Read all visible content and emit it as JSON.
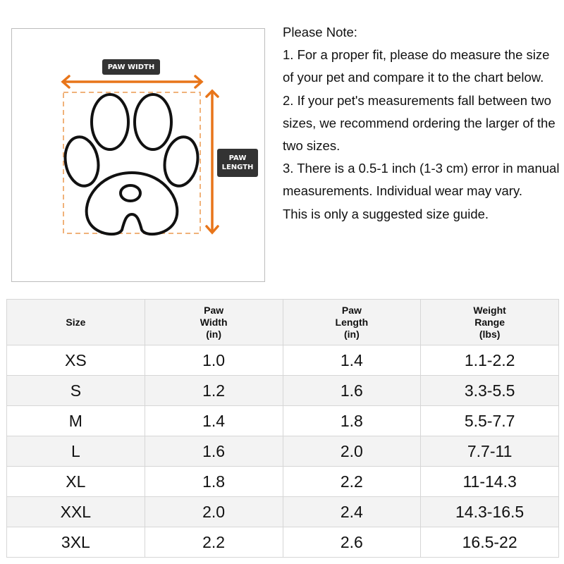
{
  "diagram": {
    "width_label": "PAW WIDTH",
    "length_label_line1": "PAW",
    "length_label_line2": "LENGTH",
    "accent_color": "#e8751a"
  },
  "note": {
    "lines": [
      "Please Note:",
      "1. For a proper fit, please do measure the size of your pet and compare it to the chart below.",
      "2. If your pet's measurements fall between two sizes, we recommend ordering the larger of the two sizes.",
      "3. There is a 0.5-1 inch (1-3 cm) error in manual measurements. Individual wear may vary.",
      "This is only a suggested size guide."
    ]
  },
  "table": {
    "headers": [
      [
        "Size"
      ],
      [
        "Paw",
        "Width",
        "(in)"
      ],
      [
        "Paw",
        "Length",
        "(in)"
      ],
      [
        "Weight",
        "Range",
        "(lbs)"
      ]
    ],
    "rows": [
      [
        "XS",
        "1.0",
        "1.4",
        "1.1-2.2"
      ],
      [
        "S",
        "1.2",
        "1.6",
        "3.3-5.5"
      ],
      [
        "M",
        "1.4",
        "1.8",
        "5.5-7.7"
      ],
      [
        "L",
        "1.6",
        "2.0",
        "7.7-11"
      ],
      [
        "XL",
        "1.8",
        "2.2",
        "11-14.3"
      ],
      [
        "XXL",
        "2.0",
        "2.4",
        "14.3-16.5"
      ],
      [
        "3XL",
        "2.2",
        "2.6",
        "16.5-22"
      ]
    ]
  }
}
